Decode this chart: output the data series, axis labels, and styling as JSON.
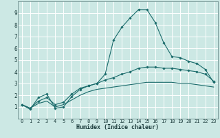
{
  "xlabel": "Humidex (Indice chaleur)",
  "ylabel": "",
  "bg_color": "#cce8e4",
  "grid_color": "#ffffff",
  "line_color": "#1a6b6b",
  "xlim": [
    -0.5,
    23.5
  ],
  "ylim": [
    0,
    10
  ],
  "xticks": [
    0,
    1,
    2,
    3,
    4,
    5,
    6,
    7,
    8,
    9,
    10,
    11,
    12,
    13,
    14,
    15,
    16,
    17,
    18,
    19,
    20,
    21,
    22,
    23
  ],
  "yticks": [
    1,
    2,
    3,
    4,
    5,
    6,
    7,
    8,
    9
  ],
  "series1_x": [
    0,
    1,
    2,
    3,
    4,
    5,
    6,
    7,
    8,
    9,
    10,
    11,
    12,
    13,
    14,
    15,
    16,
    17,
    18,
    19,
    20,
    21,
    22,
    23
  ],
  "series1_y": [
    1.2,
    0.8,
    1.8,
    2.1,
    0.9,
    1.0,
    1.9,
    2.5,
    2.8,
    3.0,
    3.8,
    6.7,
    7.8,
    8.6,
    9.3,
    9.3,
    8.2,
    6.5,
    5.3,
    5.2,
    4.9,
    4.7,
    4.2,
    3.1
  ],
  "series2_x": [
    0,
    1,
    2,
    3,
    4,
    5,
    6,
    7,
    8,
    9,
    10,
    11,
    12,
    13,
    14,
    15,
    16,
    17,
    18,
    19,
    20,
    21,
    22,
    23
  ],
  "series2_y": [
    1.2,
    0.9,
    1.5,
    1.8,
    1.2,
    1.4,
    2.1,
    2.6,
    2.8,
    3.0,
    3.3,
    3.5,
    3.8,
    4.0,
    4.3,
    4.4,
    4.4,
    4.3,
    4.3,
    4.2,
    4.1,
    4.0,
    3.8,
    3.2
  ],
  "series3_x": [
    0,
    1,
    2,
    3,
    4,
    5,
    6,
    7,
    8,
    9,
    10,
    11,
    12,
    13,
    14,
    15,
    16,
    17,
    18,
    19,
    20,
    21,
    22,
    23
  ],
  "series3_y": [
    1.2,
    0.9,
    1.3,
    1.5,
    1.0,
    1.2,
    1.6,
    2.0,
    2.3,
    2.5,
    2.6,
    2.7,
    2.8,
    2.9,
    3.0,
    3.1,
    3.1,
    3.1,
    3.1,
    3.0,
    3.0,
    2.9,
    2.8,
    2.7
  ],
  "xlabel_fontsize": 6,
  "tick_fontsize": 5
}
